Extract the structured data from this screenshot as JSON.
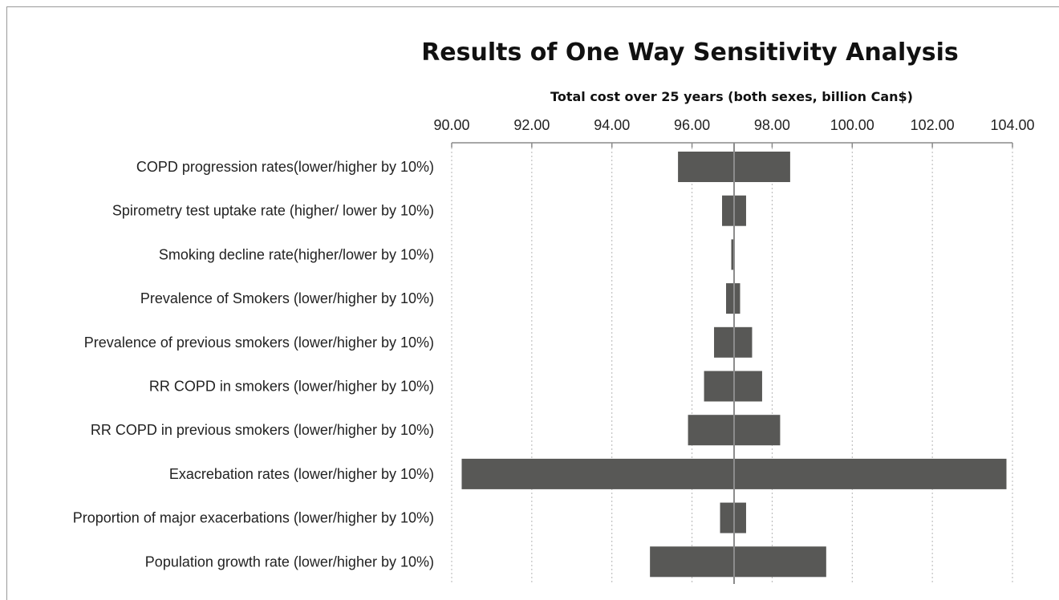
{
  "chart_data": {
    "type": "bar",
    "orientation": "horizontal",
    "chart_style": "tornado",
    "title": "Results  of One Way Sensitivity Analysis",
    "xlabel": "Total cost over 25 years (both sexes, billion Can$)",
    "xaxis_position": "top",
    "xlim": [
      90,
      104
    ],
    "xticks": [
      "90.00",
      "92.00",
      "94.00",
      "96.00",
      "98.00",
      "100.00",
      "102.00",
      "104.00"
    ],
    "grid": true,
    "grid_style": "dotted vertical",
    "reference_value": 97.05,
    "categories": [
      "COPD progression rates(lower/higher by 10%)",
      "Spirometry test uptake rate (higher/ lower by 10%)",
      "Smoking decline rate(higher/lower by 10%)",
      "Prevalence of Smokers (lower/higher by 10%)",
      "Prevalence of previous smokers (lower/higher by 10%)",
      "RR COPD in smokers (lower/higher by 10%)",
      "RR COPD in previous smokers (lower/higher by 10%)",
      "Exacrebation rates (lower/higher by 10%)",
      "Proportion of major exacerbations (lower/higher by 10%)",
      "Population growth rate (lower/higher by 10%)"
    ],
    "low_values": [
      95.65,
      96.75,
      96.98,
      96.85,
      96.55,
      96.3,
      95.9,
      90.25,
      96.7,
      94.95
    ],
    "high_values": [
      98.45,
      97.35,
      97.05,
      97.2,
      97.5,
      97.75,
      98.2,
      103.85,
      97.35,
      99.35
    ],
    "bar_color": "#585856",
    "reference_line_color": "#8c8c8c"
  }
}
